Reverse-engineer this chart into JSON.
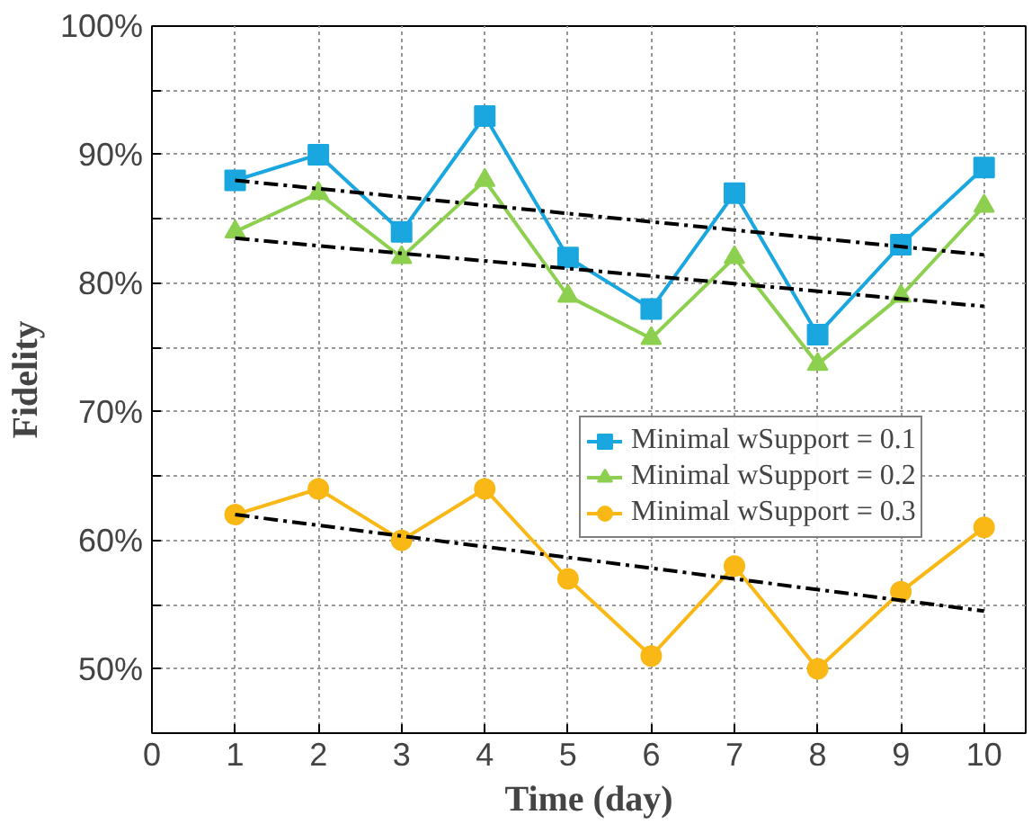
{
  "chart_data": {
    "type": "line",
    "xlabel": "Time (day)",
    "ylabel": "Fidelity",
    "xlim": [
      0,
      10.5
    ],
    "xticks": [
      0,
      1,
      2,
      3,
      4,
      5,
      6,
      7,
      8,
      9,
      10
    ],
    "ylim": [
      45,
      100
    ],
    "yticks": [
      {
        "value": 45,
        "label": null
      },
      {
        "value": 50,
        "label": "50%"
      },
      {
        "value": 55,
        "label": null
      },
      {
        "value": 60,
        "label": "60%"
      },
      {
        "value": 65,
        "label": null
      },
      {
        "value": 70,
        "label": "70%"
      },
      {
        "value": 75,
        "label": null
      },
      {
        "value": 80,
        "label": "80%"
      },
      {
        "value": 85,
        "label": null
      },
      {
        "value": 90,
        "label": "90%"
      },
      {
        "value": 95,
        "label": null
      },
      {
        "value": 100,
        "label": "100%"
      }
    ],
    "grid": true,
    "legend": "right",
    "series": [
      {
        "name": "Minimal wSupport = 0.1",
        "color": "#1aa7e0",
        "marker": "square",
        "x": [
          1,
          2,
          3,
          4,
          5,
          6,
          7,
          8,
          9,
          10
        ],
        "values": [
          88,
          90,
          84,
          93,
          82,
          78,
          87,
          76,
          83,
          89
        ]
      },
      {
        "name": "Minimal wSupport = 0.2",
        "color": "#8dd04f",
        "marker": "triangle",
        "x": [
          1,
          2,
          3,
          4,
          5,
          6,
          7,
          8,
          9,
          10
        ],
        "values": [
          84,
          87,
          82,
          88,
          79,
          75.7,
          82,
          73.7,
          79,
          86
        ]
      },
      {
        "name": "Minimal wSupport = 0.3",
        "color": "#f9b815",
        "marker": "circle",
        "x": [
          1,
          2,
          3,
          4,
          5,
          6,
          7,
          8,
          9,
          10
        ],
        "values": [
          62,
          64,
          60,
          64,
          57,
          51,
          58,
          50,
          56,
          61
        ]
      },
      {
        "color": "#000000",
        "marker": "none",
        "line_style": "dashed",
        "x": [
          1,
          10
        ],
        "values": [
          88,
          82.2
        ]
      },
      {
        "color": "#000000",
        "marker": "none",
        "line_style": "dashed",
        "x": [
          1,
          10
        ],
        "values": [
          83.5,
          78.2
        ]
      },
      {
        "color": "#000000",
        "marker": "none",
        "line_style": "dashed",
        "x": [
          1,
          10
        ],
        "values": [
          62,
          54.5
        ]
      }
    ]
  }
}
